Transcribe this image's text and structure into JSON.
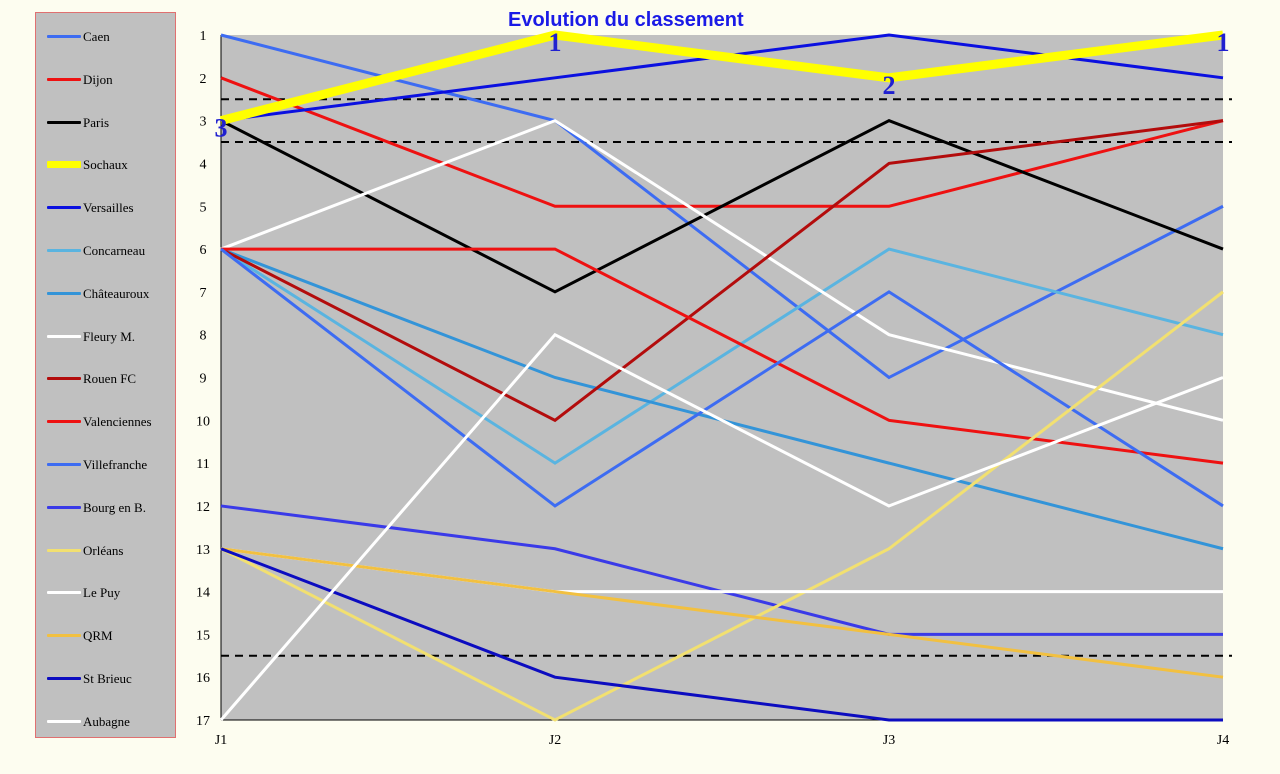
{
  "chart_data": {
    "type": "line",
    "title": "Evolution du classement",
    "xlabel": "",
    "ylabel": "",
    "x": [
      "J1",
      "J2",
      "J3",
      "J4"
    ],
    "y_ticks": [
      "1",
      "2",
      "3",
      "4",
      "5",
      "6",
      "7",
      "8",
      "9",
      "10",
      "11",
      "12",
      "13",
      "14",
      "15",
      "16",
      "17"
    ],
    "ylim": [
      1,
      17
    ],
    "y_inverted": true,
    "grid": false,
    "legend_position": "left",
    "background": "#c0c0c0",
    "reference_lines": [
      2.5,
      3.5,
      15.5
    ],
    "series": [
      {
        "name": "Caen",
        "color": "#3d6cf2",
        "width": 3,
        "values": [
          1,
          3,
          9,
          5
        ]
      },
      {
        "name": "Dijon",
        "color": "#ee1111",
        "width": 3,
        "values": [
          2,
          5,
          5,
          3
        ]
      },
      {
        "name": "Paris",
        "color": "#000000",
        "width": 3,
        "values": [
          3,
          7,
          3,
          6
        ]
      },
      {
        "name": "Sochaux",
        "color": "#ffff00",
        "width": 9,
        "values": [
          3,
          1,
          2,
          1
        ]
      },
      {
        "name": "Versailles",
        "color": "#0b10e0",
        "width": 3,
        "values": [
          3,
          2,
          1,
          2
        ]
      },
      {
        "name": "Concarneau",
        "color": "#5ab4e0",
        "width": 3,
        "values": [
          6,
          11,
          6,
          8
        ]
      },
      {
        "name": "Châteauroux",
        "color": "#3394d8",
        "width": 3,
        "values": [
          6,
          9,
          11,
          13
        ]
      },
      {
        "name": "Fleury M.",
        "color": "#ffffff",
        "width": 3,
        "values": [
          6,
          3,
          8,
          10
        ]
      },
      {
        "name": "Rouen FC",
        "color": "#b30c0c",
        "width": 3,
        "values": [
          6,
          10,
          4,
          3
        ]
      },
      {
        "name": "Valenciennes",
        "color": "#ee1111",
        "width": 3,
        "values": [
          6,
          6,
          10,
          11
        ]
      },
      {
        "name": "Villefranche",
        "color": "#3d6cf2",
        "width": 3,
        "values": [
          6,
          12,
          7,
          12
        ]
      },
      {
        "name": "Bourg en B.",
        "color": "#3a3ae8",
        "width": 3,
        "values": [
          12,
          13,
          15,
          15
        ]
      },
      {
        "name": "Orléans",
        "color": "#f2e070",
        "width": 3,
        "values": [
          13,
          17,
          13,
          7
        ]
      },
      {
        "name": "Le Puy",
        "color": "#ffffff",
        "width": 3,
        "values": [
          13,
          14,
          14,
          14
        ]
      },
      {
        "name": "QRM",
        "color": "#f2c040",
        "width": 3,
        "values": [
          13,
          14,
          15,
          16
        ]
      },
      {
        "name": "St Brieuc",
        "color": "#0c0cc0",
        "width": 3,
        "values": [
          13,
          16,
          17,
          17
        ]
      },
      {
        "name": "Aubagne",
        "color": "#ffffff",
        "width": 3,
        "values": [
          17,
          8,
          12,
          9
        ]
      }
    ],
    "annotations": [
      {
        "text": "3",
        "x": "J1",
        "y": 3
      },
      {
        "text": "1",
        "x": "J2",
        "y": 1
      },
      {
        "text": "2",
        "x": "J3",
        "y": 2
      },
      {
        "text": "1",
        "x": "J4",
        "y": 1
      }
    ]
  }
}
